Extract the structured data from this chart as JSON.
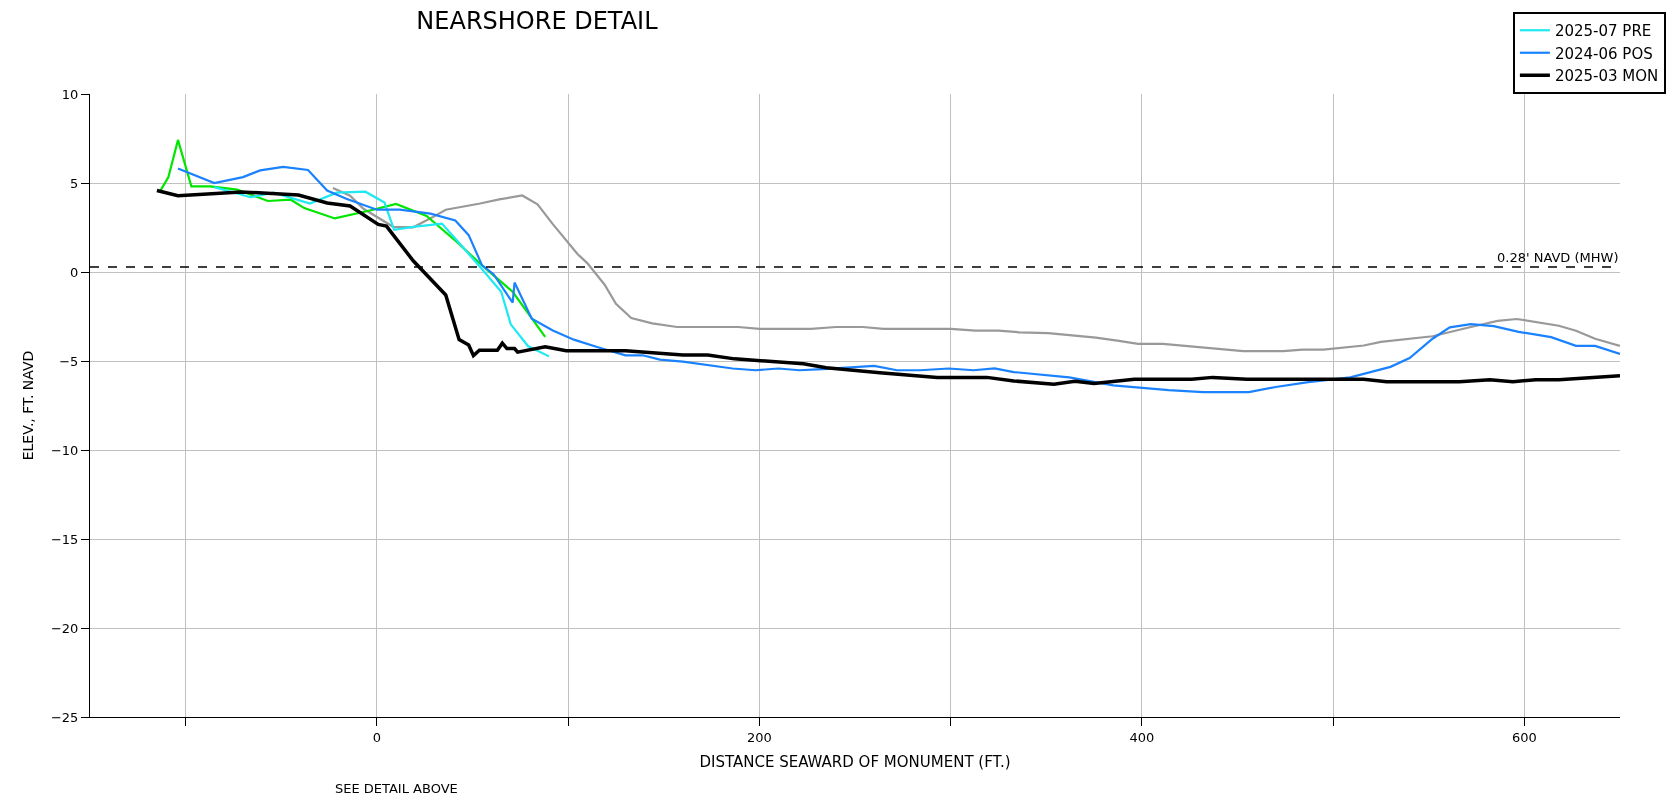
{
  "chart_data": {
    "type": "line",
    "title": "NEARSHORE DETAIL",
    "xlabel": "DISTANCE SEAWARD OF MONUMENT (FT.)",
    "ylabel": "ELEV., FT. NAVD",
    "xlim": [
      -150,
      650
    ],
    "ylim": [
      -25,
      10
    ],
    "xticks": [
      {
        "value": -100,
        "label": null
      },
      0,
      {
        "value": 100,
        "label": null
      },
      200,
      {
        "value": 300,
        "label": null
      },
      400,
      {
        "value": 500,
        "label": null
      },
      600
    ],
    "yticks": [
      -25,
      -20,
      -15,
      -10,
      -5,
      0,
      5,
      10
    ],
    "grid": true,
    "legend": "top right",
    "marker": "none",
    "line_style": "solid",
    "ref_lines": [
      {
        "axis": "y",
        "value": 0.28,
        "label": "0.28' NAVD (MHW)",
        "color": "#000000",
        "line_style": "dashed"
      }
    ],
    "annotations": [
      "SEE DETAIL ABOVE"
    ],
    "series": [
      {
        "color": "#999999",
        "x": [
          -23,
          -14,
          -7,
          8.5,
          19,
          29,
          36,
          54,
          64,
          76,
          84,
          92,
          105,
          110,
          119,
          125,
          133,
          144,
          157,
          189,
          200,
          227,
          240,
          254,
          265,
          300,
          313,
          325,
          336,
          351,
          376,
          388,
          398,
          411,
          453,
          474,
          484,
          495,
          516,
          525,
          552,
          572,
          586,
          596,
          618,
          627,
          637,
          650
        ],
        "values": [
          4.72,
          4.29,
          3.55,
          2.54,
          2.51,
          3.07,
          3.5,
          3.85,
          4.08,
          4.3,
          3.8,
          2.69,
          1.0,
          0.5,
          -0.7,
          -1.79,
          -2.59,
          -2.89,
          -3.09,
          -3.09,
          -3.19,
          -3.19,
          -3.09,
          -3.09,
          -3.19,
          -3.19,
          -3.29,
          -3.29,
          -3.39,
          -3.43,
          -3.69,
          -3.87,
          -4.04,
          -4.04,
          -4.45,
          -4.45,
          -4.36,
          -4.36,
          -4.13,
          -3.93,
          -3.61,
          -3.09,
          -2.75,
          -2.64,
          -3.02,
          -3.3,
          -3.75,
          -4.15
        ]
      },
      {
        "color": "#00e600",
        "x": [
          -113,
          -109,
          -104,
          -97,
          -87,
          -73,
          -57,
          -45,
          -38,
          -22,
          -2,
          10,
          26,
          42,
          55,
          71,
          88
        ],
        "values": [
          4.6,
          5.33,
          7.42,
          4.81,
          4.81,
          4.63,
          3.99,
          4.06,
          3.59,
          3.01,
          3.5,
          3.82,
          3.15,
          1.67,
          0.37,
          -1.11,
          -3.64
        ]
      },
      {
        "name": "2025-07 PRE",
        "color": "#1ee8f0",
        "x": [
          -85,
          -66,
          -54,
          -35,
          -21,
          -6,
          4,
          9,
          19,
          34,
          42,
          54,
          65,
          70,
          79,
          90
        ],
        "values": [
          4.77,
          4.2,
          4.46,
          3.85,
          4.46,
          4.51,
          3.9,
          2.37,
          2.54,
          2.72,
          1.76,
          0.28,
          -1.11,
          -2.94,
          -4.16,
          -4.74
        ]
      },
      {
        "name": "2024-06 POS",
        "color": "#1a82ff",
        "x": [
          -104,
          -85,
          -70,
          -61,
          -49,
          -36,
          -26,
          -16,
          0,
          12,
          28,
          41,
          48,
          55,
          61,
          71,
          72,
          81,
          92,
          103,
          116,
          130,
          139,
          148,
          160,
          186,
          198,
          210,
          221,
          233,
          260,
          272,
          284,
          299,
          312,
          323,
          333,
          362,
          385,
          414,
          432,
          456,
          470,
          487,
          509,
          530,
          540,
          552,
          561,
          572,
          584,
          597,
          614,
          627,
          637,
          650
        ],
        "values": [
          5.82,
          5.0,
          5.33,
          5.71,
          5.91,
          5.73,
          4.58,
          4.11,
          3.5,
          3.5,
          3.28,
          2.89,
          2.07,
          0.37,
          -0.12,
          -1.72,
          -0.59,
          -2.63,
          -3.29,
          -3.8,
          -4.24,
          -4.68,
          -4.68,
          -4.92,
          -5.04,
          -5.42,
          -5.52,
          -5.42,
          -5.52,
          -5.46,
          -5.28,
          -5.52,
          -5.52,
          -5.42,
          -5.52,
          -5.42,
          -5.62,
          -5.92,
          -6.37,
          -6.64,
          -6.75,
          -6.75,
          -6.46,
          -6.19,
          -5.92,
          -5.33,
          -4.83,
          -3.75,
          -3.11,
          -2.93,
          -3.04,
          -3.36,
          -3.66,
          -4.15,
          -4.15,
          -4.6
        ]
      },
      {
        "name": "2025-03 MON",
        "color": "#000000",
        "x": [
          -115,
          -104,
          -71,
          -41,
          -26,
          -14,
          0.7,
          5,
          19,
          36,
          43,
          48,
          50.5,
          53.6,
          63,
          65.6,
          68,
          72,
          73.6,
          88,
          99,
          130,
          160,
          173,
          187,
          223,
          235,
          263,
          293,
          319,
          333,
          354,
          365,
          375,
          396,
          426,
          437,
          455,
          516,
          528,
          566,
          582,
          594,
          606,
          618,
          650
        ],
        "values": [
          4.58,
          4.29,
          4.5,
          4.32,
          3.88,
          3.71,
          2.67,
          2.58,
          0.63,
          -1.29,
          -3.8,
          -4.1,
          -4.7,
          -4.4,
          -4.4,
          -4.0,
          -4.3,
          -4.3,
          -4.5,
          -4.2,
          -4.42,
          -4.42,
          -4.66,
          -4.66,
          -4.88,
          -5.16,
          -5.38,
          -5.66,
          -5.92,
          -5.92,
          -6.12,
          -6.31,
          -6.14,
          -6.26,
          -6.03,
          -6.03,
          -5.92,
          -6.03,
          -6.03,
          -6.16,
          -6.16,
          -6.05,
          -6.16,
          -6.05,
          -6.05,
          -5.83
        ]
      }
    ]
  }
}
